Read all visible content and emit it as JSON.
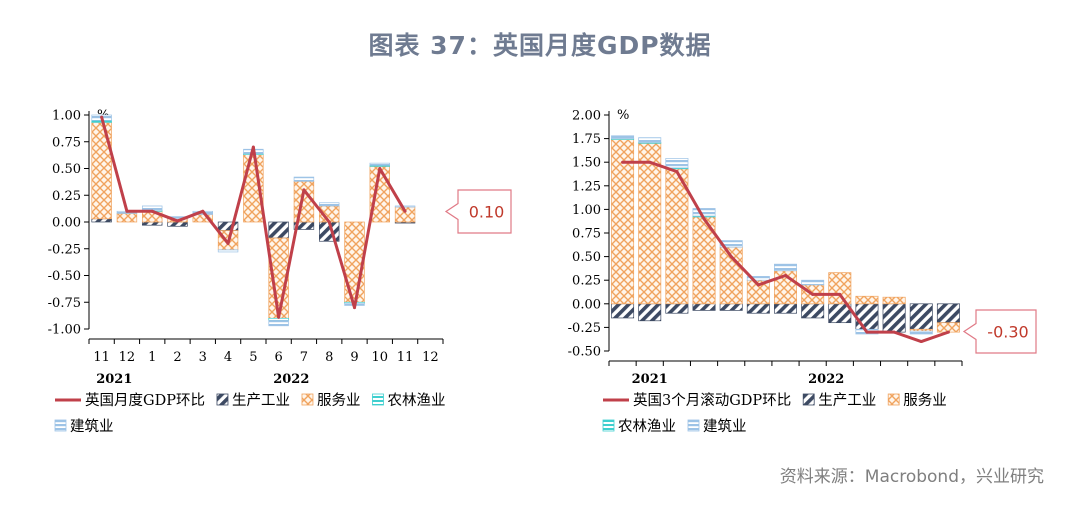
{
  "title": "图表 37：英国月度GDP数据",
  "source": "资料来源：Macrobond，兴业研究",
  "colors": {
    "line": "#c0404a",
    "industry": "#3d4a63",
    "services": "#f0a35e",
    "agriculture": "#3fcfcf",
    "construction": "#9dc3e6",
    "callout_border": "#e07a86"
  },
  "chart_data": [
    {
      "type": "bar",
      "unit": "%",
      "ylim": [
        -1.0,
        1.0
      ],
      "yticks": [
        "1.00",
        "0.75",
        "0.50",
        "0.25",
        "0.00",
        "-0.25",
        "-0.50",
        "-0.75",
        "-1.00"
      ],
      "categories": [
        "11",
        "12",
        "1",
        "2",
        "3",
        "4",
        "5",
        "6",
        "7",
        "8",
        "9",
        "10",
        "11",
        "12"
      ],
      "year_labels": [
        {
          "text": "2021",
          "at": 0.5
        },
        {
          "text": "2022",
          "at": 7.5
        }
      ],
      "series": [
        {
          "name": "生产工业",
          "key": "industry",
          "values": [
            0.03,
            0.0,
            -0.03,
            -0.04,
            0.0,
            -0.08,
            0.0,
            -0.15,
            -0.07,
            -0.18,
            0.0,
            0.0,
            -0.01,
            null
          ]
        },
        {
          "name": "服务业",
          "key": "services",
          "values": [
            0.9,
            0.08,
            0.1,
            0.03,
            0.07,
            -0.18,
            0.63,
            -0.75,
            0.38,
            0.15,
            -0.75,
            0.52,
            0.14,
            null
          ]
        },
        {
          "name": "农林渔业",
          "key": "agriculture",
          "values": [
            0.02,
            0.0,
            0.01,
            0.0,
            0.0,
            0.0,
            0.01,
            -0.02,
            0.0,
            0.0,
            -0.01,
            0.01,
            0.0,
            null
          ]
        },
        {
          "name": "建筑业",
          "key": "construction",
          "values": [
            0.05,
            0.02,
            0.04,
            0.02,
            0.03,
            -0.02,
            0.04,
            -0.05,
            0.04,
            0.03,
            -0.02,
            0.02,
            0.01,
            null
          ]
        }
      ],
      "line": {
        "name": "英国月度GDP环比",
        "values": [
          0.98,
          0.1,
          0.1,
          0.01,
          0.1,
          -0.2,
          0.7,
          -0.89,
          0.3,
          0.0,
          -0.8,
          0.5,
          0.1,
          null
        ]
      },
      "callout": "0.10",
      "legend": [
        "英国月度GDP环比",
        "生产工业",
        "服务业",
        "农林渔业",
        "建筑业"
      ]
    },
    {
      "type": "bar",
      "unit": "%",
      "ylim": [
        -0.5,
        2.0
      ],
      "yticks": [
        "2.00",
        "1.75",
        "1.50",
        "1.25",
        "1.00",
        "0.75",
        "0.50",
        "0.25",
        "0.00",
        "-0.25",
        "-0.50"
      ],
      "year_labels": [
        {
          "text": "2021",
          "at": 1.0
        },
        {
          "text": "2022",
          "at": 7.5
        }
      ],
      "n_periods": 13,
      "series": [
        {
          "name": "生产工业",
          "key": "industry",
          "values": [
            -0.15,
            -0.18,
            -0.1,
            -0.07,
            -0.07,
            -0.1,
            -0.1,
            -0.15,
            -0.2,
            -0.27,
            -0.3,
            -0.27,
            -0.2
          ]
        },
        {
          "name": "服务业",
          "key": "services",
          "values": [
            1.74,
            1.7,
            1.43,
            0.92,
            0.6,
            0.25,
            0.35,
            0.2,
            0.33,
            0.08,
            0.07,
            -0.02,
            -0.1
          ]
        },
        {
          "name": "农林渔业",
          "key": "agriculture",
          "values": [
            0.01,
            0.01,
            0.01,
            0.01,
            0.0,
            0.0,
            0.0,
            0.0,
            0.0,
            0.0,
            0.0,
            0.0,
            0.0
          ]
        },
        {
          "name": "建筑业",
          "key": "construction",
          "values": [
            0.03,
            0.05,
            0.1,
            0.08,
            0.07,
            0.04,
            0.07,
            0.05,
            0.0,
            -0.05,
            0.0,
            -0.03,
            0.0
          ]
        }
      ],
      "line": {
        "name": "英国3个月滚动GDP环比",
        "values": [
          1.5,
          1.5,
          1.4,
          0.9,
          0.5,
          0.2,
          0.3,
          0.1,
          0.1,
          -0.3,
          -0.3,
          -0.4,
          -0.3
        ]
      },
      "callout": "-0.30",
      "legend": [
        "英国3个月滚动GDP环比",
        "生产工业",
        "服务业",
        "农林渔业",
        "建筑业"
      ]
    }
  ]
}
